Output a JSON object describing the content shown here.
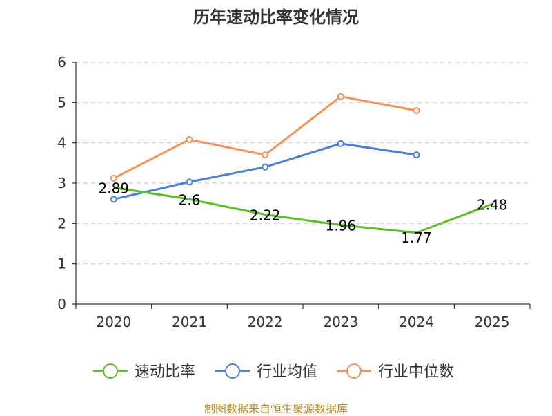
{
  "chart_data": {
    "type": "line",
    "title": "历年速动比率变化情况",
    "categories": [
      "2020",
      "2021",
      "2022",
      "2023",
      "2024",
      "2025"
    ],
    "ylim": [
      0,
      6
    ],
    "yticks": [
      0,
      1,
      2,
      3,
      4,
      5,
      6
    ],
    "grid": true,
    "legend_position": "bottom",
    "series": [
      {
        "name": "速动比率",
        "color": "#5cbf2a",
        "values": [
          2.89,
          2.6,
          2.22,
          1.96,
          1.77,
          2.48
        ],
        "labels": [
          "2.89",
          "2.6",
          "2.22",
          "1.96",
          "1.77",
          "2.48"
        ],
        "show_markers": false
      },
      {
        "name": "行业均值",
        "color": "#4a7fdc",
        "values": [
          2.6,
          3.03,
          3.4,
          3.98,
          3.7,
          null
        ],
        "show_markers": true
      },
      {
        "name": "行业中位数",
        "color": "#f4925a",
        "values": [
          3.12,
          4.08,
          3.7,
          5.15,
          4.8,
          null
        ],
        "show_markers": true
      }
    ]
  },
  "footer": {
    "source": "制图数据来自恒生聚源数据库"
  }
}
